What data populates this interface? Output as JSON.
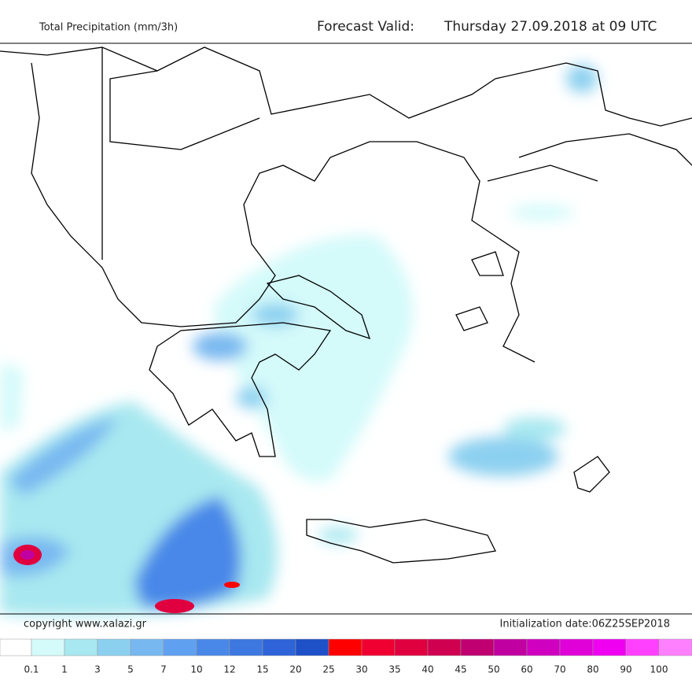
{
  "header": {
    "title": "Total Precipitation (mm/3h)",
    "valid_label": "Forecast Valid:",
    "valid_time": "Thursday 27.09.2018 at 09 UTC"
  },
  "footer": {
    "copyright": "copyright www.xalazi.gr",
    "initialization": "Initialization date:06Z25SEP2018"
  },
  "legend": {
    "levels": [
      0.1,
      1,
      3,
      5,
      7,
      10,
      12,
      15,
      20,
      25,
      30,
      35,
      40,
      45,
      50,
      60,
      70,
      80,
      90,
      100
    ],
    "colors": [
      "#ffffff",
      "#d4fafa",
      "#a8e8f0",
      "#8cd0f0",
      "#78b8f0",
      "#60a0f0",
      "#4a88e8",
      "#3c78e0",
      "#2e64d8",
      "#1e50c8",
      "#ff0000",
      "#f00030",
      "#e00040",
      "#d00050",
      "#c00070",
      "#c000a0",
      "#d000c0",
      "#e000d8",
      "#f000f0",
      "#ff40ff",
      "#ff80ff"
    ]
  }
}
